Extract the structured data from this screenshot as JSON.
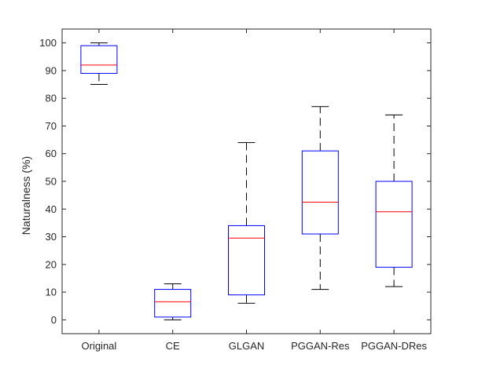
{
  "chart_data": {
    "type": "boxplot",
    "title": "",
    "xlabel": "",
    "ylabel": "Naturalness (%)",
    "ylim": [
      -5,
      105
    ],
    "yticks": [
      0,
      10,
      20,
      30,
      40,
      50,
      60,
      70,
      80,
      90,
      100
    ],
    "grid": false,
    "categories": [
      "Original",
      "CE",
      "GLGAN",
      "PGGAN-Res",
      "PGGAN-DRes"
    ],
    "boxes": [
      {
        "whisker_low": 85,
        "q1": 89,
        "median": 92,
        "q3": 99,
        "whisker_high": 100
      },
      {
        "whisker_low": 0,
        "q1": 1,
        "median": 6.5,
        "q3": 11,
        "whisker_high": 13
      },
      {
        "whisker_low": 6,
        "q1": 9,
        "median": 29.5,
        "q3": 34,
        "whisker_high": 64
      },
      {
        "whisker_low": 11,
        "q1": 31,
        "median": 42.5,
        "q3": 61,
        "whisker_high": 77
      },
      {
        "whisker_low": 12,
        "q1": 19,
        "median": 39,
        "q3": 50,
        "whisker_high": 74
      }
    ],
    "colors": {
      "box": "#0000ff",
      "median": "#ff0000",
      "whisker": "#000000",
      "axes": "#262626"
    }
  }
}
